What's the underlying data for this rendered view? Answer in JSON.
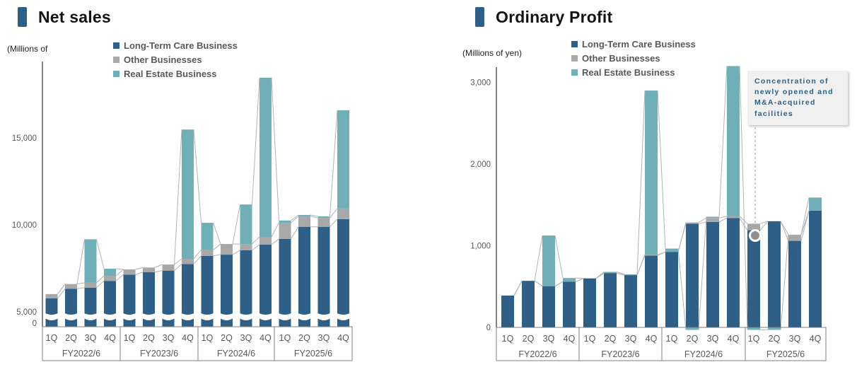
{
  "page": {
    "background": "#ffffff"
  },
  "legend_colors": {
    "long_term_care": "#2E5F86",
    "other": "#A8A8A8",
    "real_estate": "#6FAFB7"
  },
  "chart_data": [
    {
      "type": "bar",
      "stacked": true,
      "title": "Net sales",
      "unit_label": "(Millions of",
      "categories": [
        "1Q",
        "2Q",
        "3Q",
        "4Q",
        "1Q",
        "2Q",
        "3Q",
        "4Q",
        "1Q",
        "2Q",
        "3Q",
        "4Q",
        "1Q",
        "2Q",
        "3Q",
        "4Q"
      ],
      "group_labels": [
        "FY2022/6",
        "FY2023/6",
        "FY2024/6",
        "FY2025/6"
      ],
      "y_ticks": [
        0,
        5000,
        10000,
        15000
      ],
      "y_tick_labels": [
        "0",
        "5,000",
        "10,000",
        "15,000"
      ],
      "ylim": [
        0,
        19000
      ],
      "axis_break": true,
      "grid": false,
      "legend_position": "top",
      "series": [
        {
          "name": "Long-Term Care Business",
          "color": "#2E5F86",
          "values": [
            5780,
            6330,
            6390,
            6780,
            7140,
            7280,
            7370,
            7750,
            8220,
            8290,
            8540,
            8870,
            9190,
            9890,
            9890,
            10330
          ]
        },
        {
          "name": "Other Businesses",
          "color": "#A8A8A8",
          "values": [
            240,
            270,
            280,
            290,
            300,
            270,
            350,
            300,
            340,
            610,
            360,
            440,
            930,
            600,
            510,
            610
          ]
        },
        {
          "name": "Real Estate Business",
          "color": "#6FAFB7",
          "values": [
            0,
            0,
            2500,
            410,
            0,
            0,
            0,
            7430,
            1560,
            0,
            2270,
            9150,
            130,
            80,
            90,
            5650
          ]
        }
      ]
    },
    {
      "type": "bar",
      "stacked": true,
      "title": "Ordinary Profit",
      "unit_label": "(Millions of yen)",
      "categories": [
        "1Q",
        "2Q",
        "3Q",
        "4Q",
        "1Q",
        "2Q",
        "3Q",
        "4Q",
        "1Q",
        "2Q",
        "3Q",
        "4Q",
        "1Q",
        "2Q",
        "3Q",
        "4Q"
      ],
      "group_labels": [
        "FY2022/6",
        "FY2023/6",
        "FY2024/6",
        "FY2025/6"
      ],
      "y_ticks": [
        0,
        1000,
        2000,
        3000
      ],
      "y_tick_labels": [
        "0",
        "1,000",
        "2,000",
        "3,000"
      ],
      "ylim": [
        0,
        3300
      ],
      "axis_break": false,
      "grid": false,
      "legend_position": "top",
      "annotation": "Concentration of newly opened and M&A-acquired facilities",
      "annotation_target": "1Q FY2025/6",
      "series": [
        {
          "name": "Long-Term Care Business",
          "color": "#2E5F86",
          "values": [
            390,
            570,
            505,
            560,
            600,
            665,
            640,
            880,
            925,
            1270,
            1290,
            1340,
            1190,
            1300,
            1060,
            1430
          ]
        },
        {
          "name": "Other Businesses",
          "color": "#A8A8A8",
          "values": [
            0,
            0,
            0,
            0,
            0,
            0,
            0,
            10,
            0,
            15,
            50,
            20,
            80,
            0,
            75,
            0
          ]
        },
        {
          "name": "Real Estate Business",
          "color": "#6FAFB7",
          "values": [
            0,
            0,
            620,
            45,
            0,
            15,
            10,
            2010,
            40,
            -15,
            15,
            1840,
            -15,
            -15,
            0,
            160
          ]
        }
      ]
    }
  ]
}
